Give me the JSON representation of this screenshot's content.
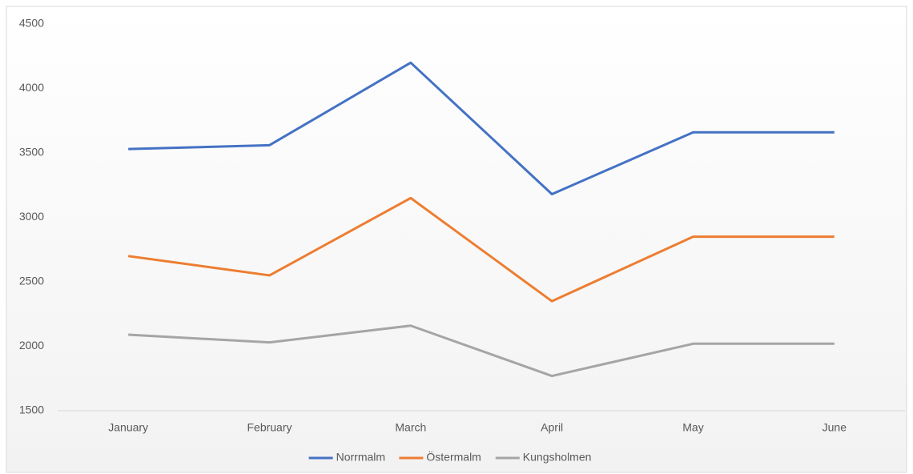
{
  "chart_data": {
    "type": "line",
    "categories": [
      "January",
      "February",
      "March",
      "April",
      "May",
      "June"
    ],
    "series": [
      {
        "name": "Norrmalm",
        "color": "#4472c4",
        "values": [
          3530,
          3560,
          4200,
          3180,
          3660,
          3660
        ]
      },
      {
        "name": "Östermalm",
        "color": "#ed7d31",
        "values": [
          2700,
          2550,
          3150,
          2350,
          2850,
          2850
        ]
      },
      {
        "name": "Kungsholmen",
        "color": "#a5a5a5",
        "values": [
          2090,
          2030,
          2160,
          1770,
          2020,
          2020
        ]
      }
    ],
    "ylim": [
      1500,
      4500
    ],
    "yticks": [
      1500,
      2000,
      2500,
      3000,
      3500,
      4000,
      4500
    ],
    "grid": false,
    "legend": "bottom"
  }
}
